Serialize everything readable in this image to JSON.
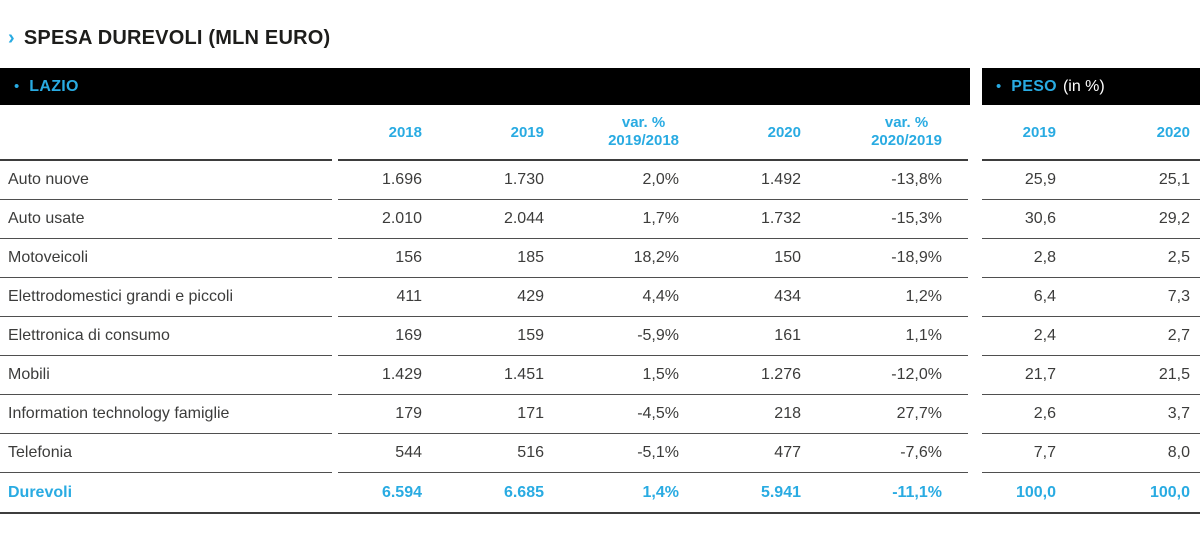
{
  "title": {
    "arrow": "›",
    "text": "SPESA DUREVOLI (MLN EURO)"
  },
  "sections": {
    "left": {
      "bullet": "•",
      "label": "LAZIO"
    },
    "right": {
      "bullet": "•",
      "label": "PESO",
      "suffix": "(in %)"
    }
  },
  "table": {
    "headers": {
      "y2018": "2018",
      "y2019": "2019",
      "var1_line1": "var. %",
      "var1_line2": "2019/2018",
      "y2020": "2020",
      "var2_line1": "var. %",
      "var2_line2": "2020/2019",
      "peso2019": "2019",
      "peso2020": "2020"
    },
    "rows": [
      {
        "label": "Auto nuove",
        "v2018": "1.696",
        "v2019": "1.730",
        "var1": "2,0%",
        "v2020": "1.492",
        "var2": "-13,8%",
        "p2019": "25,9",
        "p2020": "25,1",
        "is_total": false
      },
      {
        "label": "Auto usate",
        "v2018": "2.010",
        "v2019": "2.044",
        "var1": "1,7%",
        "v2020": "1.732",
        "var2": "-15,3%",
        "p2019": "30,6",
        "p2020": "29,2",
        "is_total": false
      },
      {
        "label": "Motoveicoli",
        "v2018": "156",
        "v2019": "185",
        "var1": "18,2%",
        "v2020": "150",
        "var2": "-18,9%",
        "p2019": "2,8",
        "p2020": "2,5",
        "is_total": false
      },
      {
        "label": "Elettrodomestici grandi e piccoli",
        "v2018": "411",
        "v2019": "429",
        "var1": "4,4%",
        "v2020": "434",
        "var2": "1,2%",
        "p2019": "6,4",
        "p2020": "7,3",
        "is_total": false
      },
      {
        "label": "Elettronica di consumo",
        "v2018": "169",
        "v2019": "159",
        "var1": "-5,9%",
        "v2020": "161",
        "var2": "1,1%",
        "p2019": "2,4",
        "p2020": "2,7",
        "is_total": false
      },
      {
        "label": "Mobili",
        "v2018": "1.429",
        "v2019": "1.451",
        "var1": "1,5%",
        "v2020": "1.276",
        "var2": "-12,0%",
        "p2019": "21,7",
        "p2020": "21,5",
        "is_total": false
      },
      {
        "label": "Information technology famiglie",
        "v2018": "179",
        "v2019": "171",
        "var1": "-4,5%",
        "v2020": "218",
        "var2": "27,7%",
        "p2019": "2,6",
        "p2020": "3,7",
        "is_total": false
      },
      {
        "label": "Telefonia",
        "v2018": "544",
        "v2019": "516",
        "var1": "-5,1%",
        "v2020": "477",
        "var2": "-7,6%",
        "p2019": "7,7",
        "p2020": "8,0",
        "is_total": false
      },
      {
        "label": "Durevoli",
        "v2018": "6.594",
        "v2019": "6.685",
        "var1": "1,4%",
        "v2020": "5.941",
        "var2": "-11,1%",
        "p2019": "100,0",
        "p2020": "100,0",
        "is_total": true
      }
    ]
  },
  "colors": {
    "accent_cyan": "#29abe2",
    "bar_background": "#000000",
    "text_dark": "#3c3c3b",
    "rule_line": "#4f4f4f"
  },
  "chart_data": {
    "type": "table",
    "title": "SPESA DUREVOLI (MLN EURO)",
    "region": "LAZIO",
    "columns": [
      "2018",
      "2019",
      "var. % 2019/2018",
      "2020",
      "var. % 2020/2019",
      "PESO 2019 (in %)",
      "PESO 2020 (in %)"
    ],
    "categories": [
      "Auto nuove",
      "Auto usate",
      "Motoveicoli",
      "Elettrodomestici grandi e piccoli",
      "Elettronica di consumo",
      "Mobili",
      "Information technology famiglie",
      "Telefonia",
      "Durevoli"
    ],
    "series": [
      {
        "name": "2018",
        "values": [
          1696,
          2010,
          156,
          411,
          169,
          1429,
          179,
          544,
          6594
        ]
      },
      {
        "name": "2019",
        "values": [
          1730,
          2044,
          185,
          429,
          159,
          1451,
          171,
          516,
          6685
        ]
      },
      {
        "name": "var. % 2019/2018",
        "values": [
          2.0,
          1.7,
          18.2,
          4.4,
          -5.9,
          1.5,
          -4.5,
          -5.1,
          1.4
        ]
      },
      {
        "name": "2020",
        "values": [
          1492,
          1732,
          150,
          434,
          161,
          1276,
          218,
          477,
          5941
        ]
      },
      {
        "name": "var. % 2020/2019",
        "values": [
          -13.8,
          -15.3,
          -18.9,
          1.2,
          1.1,
          -12.0,
          27.7,
          -7.6,
          -11.1
        ]
      },
      {
        "name": "PESO 2019 (in %)",
        "values": [
          25.9,
          30.6,
          2.8,
          6.4,
          2.4,
          21.7,
          2.6,
          7.7,
          100.0
        ]
      },
      {
        "name": "PESO 2020 (in %)",
        "values": [
          25.1,
          29.2,
          2.5,
          7.3,
          2.7,
          21.5,
          3.7,
          8.0,
          100.0
        ]
      }
    ]
  }
}
